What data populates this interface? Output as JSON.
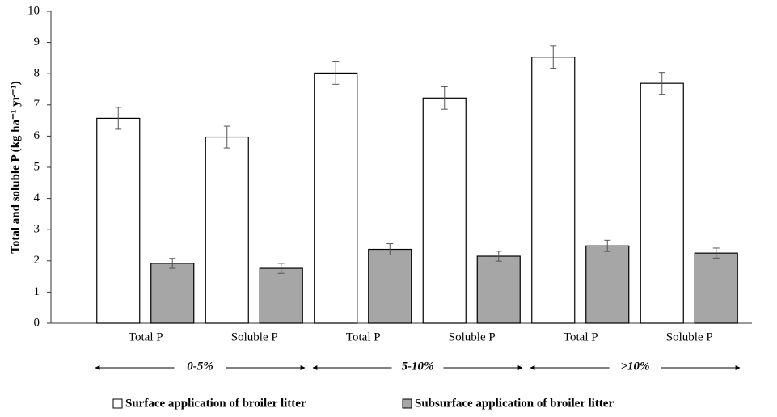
{
  "chart_data": {
    "type": "bar",
    "ylabel": "Total and soluble P (kg ha⁻¹ yr⁻¹)",
    "categories": [
      "Total P",
      "Soluble P",
      "Total P",
      "Soluble P",
      "Total P",
      "Soluble P"
    ],
    "groups": [
      "0-5%",
      "5-10%",
      ">10%"
    ],
    "series": [
      {
        "name": "Surface application of broiler litter",
        "color": "#ffffff",
        "values": [
          6.57,
          5.97,
          8.02,
          7.22,
          8.53,
          7.69
        ],
        "errors": [
          0.35,
          0.35,
          0.36,
          0.36,
          0.36,
          0.35
        ]
      },
      {
        "name": "Subsurface application of broiler litter",
        "color": "#a6a6a6",
        "values": [
          1.92,
          1.76,
          2.37,
          2.15,
          2.48,
          2.25
        ],
        "errors": [
          0.16,
          0.16,
          0.18,
          0.16,
          0.18,
          0.16
        ]
      }
    ],
    "ylim": [
      0,
      10
    ],
    "yticks": [
      0,
      1,
      2,
      3,
      4,
      5,
      6,
      7,
      8,
      9,
      10
    ],
    "grid": false
  }
}
